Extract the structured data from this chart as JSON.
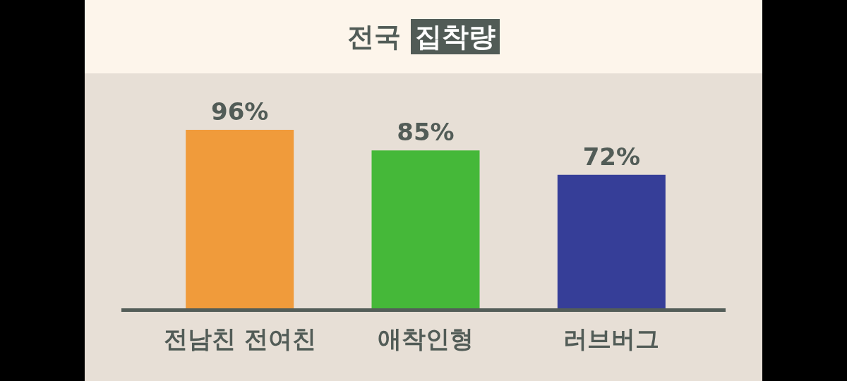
{
  "chart_data": {
    "type": "bar",
    "title": "전국 집착량",
    "categories": [
      "전남친 전여친",
      "애착인형",
      "러브버그"
    ],
    "values": [
      96,
      85,
      72
    ],
    "colors": [
      "#f09b3b",
      "#45b839",
      "#363e98"
    ],
    "value_labels": [
      "96%",
      "85%",
      "72%"
    ]
  }
}
